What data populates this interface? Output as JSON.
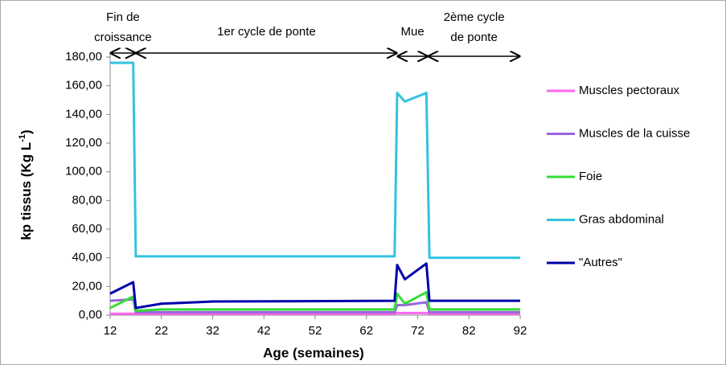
{
  "chart_data": {
    "type": "line",
    "x_label": "Age (semaines)",
    "y_label": {
      "text": "kp tissus (Kg L",
      "sup": "-1",
      "end": ")"
    },
    "x": [
      12,
      16.5,
      17,
      22,
      32,
      67.5,
      68,
      69.5,
      73.7,
      74.3,
      92
    ],
    "series": [
      {
        "name": "Muscles pectoraux",
        "color": "#ff66ee",
        "values": [
          1,
          1,
          1,
          1,
          1,
          1,
          1.5,
          1.5,
          1.5,
          1,
          1
        ]
      },
      {
        "name": "Muscles de la cuisse",
        "color": "#9966dd",
        "values": [
          10,
          11,
          2,
          2,
          2,
          2,
          7,
          7,
          9,
          2,
          2
        ]
      },
      {
        "name": "Foie",
        "color": "#33dd33",
        "values": [
          5,
          13,
          3,
          4,
          4,
          4,
          15,
          8,
          16,
          4,
          4
        ]
      },
      {
        "name": "Gras abdominal",
        "color": "#33c3e0",
        "values": [
          176,
          176,
          41,
          41,
          41,
          41,
          155,
          149,
          155,
          40,
          40
        ]
      },
      {
        "name": "\"Autres\"",
        "color": "#0000aa",
        "values": [
          15,
          23,
          5,
          8,
          9.5,
          10,
          35,
          25,
          36,
          10,
          10
        ]
      }
    ],
    "xlim": [
      12,
      92
    ],
    "xticks": [
      12,
      22,
      32,
      42,
      52,
      62,
      72,
      82,
      92
    ],
    "ylim": [
      0,
      180
    ],
    "yticks": [
      {
        "value": 0,
        "label": "0,00"
      },
      {
        "value": 20,
        "label": "20,00"
      },
      {
        "value": 40,
        "label": "40,00"
      },
      {
        "value": 60,
        "label": "60,00"
      },
      {
        "value": 80,
        "label": "80,00"
      },
      {
        "value": 100,
        "label": "100,00"
      },
      {
        "value": 120,
        "label": "120,00"
      },
      {
        "value": 140,
        "label": "140,00"
      },
      {
        "value": 160,
        "label": "160,00"
      },
      {
        "value": 180,
        "label": "180,00"
      }
    ],
    "grid": false,
    "legend": "right",
    "annotations": [
      {
        "lines": [
          "Fin de",
          "croissance"
        ],
        "start": 12,
        "end": 17
      },
      {
        "lines": [
          "1er cycle de ponte"
        ],
        "start": 17,
        "end": 68
      },
      {
        "lines": [
          "Mue"
        ],
        "start": 68,
        "end": 74
      },
      {
        "lines": [
          "2ème cycle",
          "de ponte"
        ],
        "start": 74,
        "end": 92
      }
    ]
  }
}
